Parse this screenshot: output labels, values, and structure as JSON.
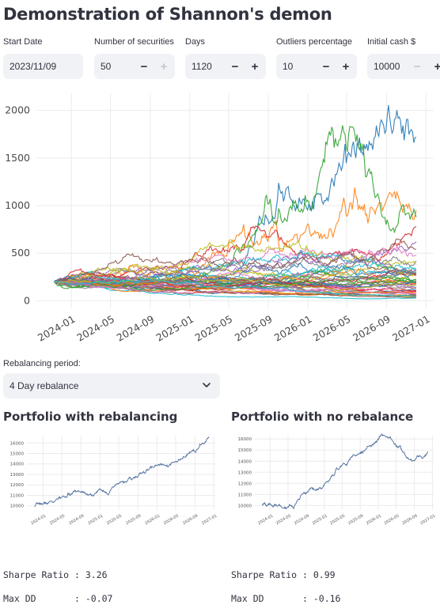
{
  "page_title": "Demonstration of Shannon's demon",
  "inputs": {
    "start_date": {
      "label": "Start Date",
      "value": "2023/11/09"
    },
    "num_securities": {
      "label": "Number of securities",
      "value": "50"
    },
    "days": {
      "label": "Days",
      "value": "1120"
    },
    "outliers": {
      "label": "Outliers percentage",
      "value": "10"
    },
    "initial_cash": {
      "label": "Initial cash $",
      "value": "10000"
    },
    "minus_glyph": "−",
    "plus_glyph": "+"
  },
  "rebalancing": {
    "label": "Rebalancing period:",
    "selected": "4 Day rebalance"
  },
  "left_panel": {
    "title": "Portfolio with rebalancing",
    "sharpe": "Sharpe Ratio : 3.26",
    "maxdd": "Max DD       : -0.07"
  },
  "right_panel": {
    "title": "Portfolio with no rebalance",
    "sharpe": "Sharpe Ratio : 0.99",
    "maxdd": "Max DD       : -0.16"
  },
  "colors": {
    "line": "#4c6c9c",
    "grid": "#ebebeb",
    "input_bg": "#f0f2f6"
  },
  "chart_data": [
    {
      "type": "line",
      "title": "",
      "description_series_count": 50,
      "x_ticks": [
        "2024-01",
        "2024-05",
        "2024-09",
        "2025-01",
        "2025-05",
        "2025-09",
        "2026-01",
        "2026-05",
        "2026-09",
        "2027-01"
      ],
      "y_ticks": [
        "0",
        "500",
        "1000",
        "1500",
        "2000"
      ],
      "ylim": [
        -80,
        2180
      ],
      "xlim": [
        "2023-09-15",
        "2027-01-25"
      ],
      "series_start": "2023-11-09",
      "series_end": "2026-12-02",
      "series_start_value": 200,
      "highlight_finals": [
        1720,
        950,
        880,
        780,
        620,
        540,
        480,
        420,
        380,
        330,
        290,
        260,
        220,
        190,
        160,
        130,
        100,
        70,
        45,
        30
      ],
      "series_colors": [
        "#1f77b4",
        "#ff7f0e",
        "#2ca02c",
        "#d62728",
        "#9467bd",
        "#8c564b",
        "#e377c2",
        "#7f7f7f",
        "#bcbd22",
        "#17becf"
      ]
    },
    {
      "type": "line",
      "title": "Portfolio with rebalancing",
      "x_ticks": [
        "2024-01",
        "2024-05",
        "2024-09",
        "2025-01",
        "2025-05",
        "2025-09",
        "2026-01",
        "2026-05",
        "2026-09",
        "2027-01"
      ],
      "y_ticks": [
        "10000",
        "11000",
        "12000",
        "13000",
        "14000",
        "15000",
        "16000"
      ],
      "ylim": [
        9600,
        16700
      ],
      "start_value": 9900,
      "end_value": 16500
    },
    {
      "type": "line",
      "title": "Portfolio with no rebalance",
      "x_ticks": [
        "2024-01",
        "2024-05",
        "2024-09",
        "2025-01",
        "2025-05",
        "2025-09",
        "2026-01",
        "2026-05",
        "2026-09",
        "2027-01"
      ],
      "y_ticks": [
        "10000",
        "11000",
        "12000",
        "13000",
        "14000",
        "15000",
        "16000"
      ],
      "ylim": [
        9600,
        16300
      ],
      "start_value": 10000,
      "peak_value": 15950,
      "end_value": 14800
    }
  ]
}
